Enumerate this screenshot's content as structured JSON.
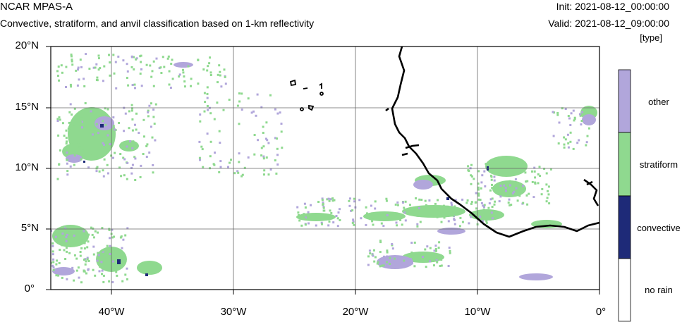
{
  "header": {
    "title": "NCAR MPAS-A",
    "subtitle": "Convective, stratiform, and anvil classification based on 1-km reflectivity",
    "init": "Init: 2021-08-12_00:00:00",
    "valid": "Valid: 2021-08-12_09:00:00",
    "units": "[type]"
  },
  "axes": {
    "lat_labels": [
      "20°N",
      "15°N",
      "10°N",
      "5°N",
      "0°"
    ],
    "lon_labels": [
      "40°W",
      "30°W",
      "20°W",
      "10°W",
      "0°"
    ]
  },
  "colorbar": {
    "classes": [
      {
        "label": "other",
        "color": "#b1a6db"
      },
      {
        "label": "stratiform",
        "color": "#8fd98f"
      },
      {
        "label": "convective",
        "color": "#1e2a78"
      },
      {
        "label": "no rain",
        "color": "#ffffff"
      }
    ]
  },
  "colors": {
    "other": "#b1a6db",
    "stratiform": "#8fd98f",
    "convective": "#1e2a78",
    "coast": "#000000",
    "grid": "#555555"
  }
}
